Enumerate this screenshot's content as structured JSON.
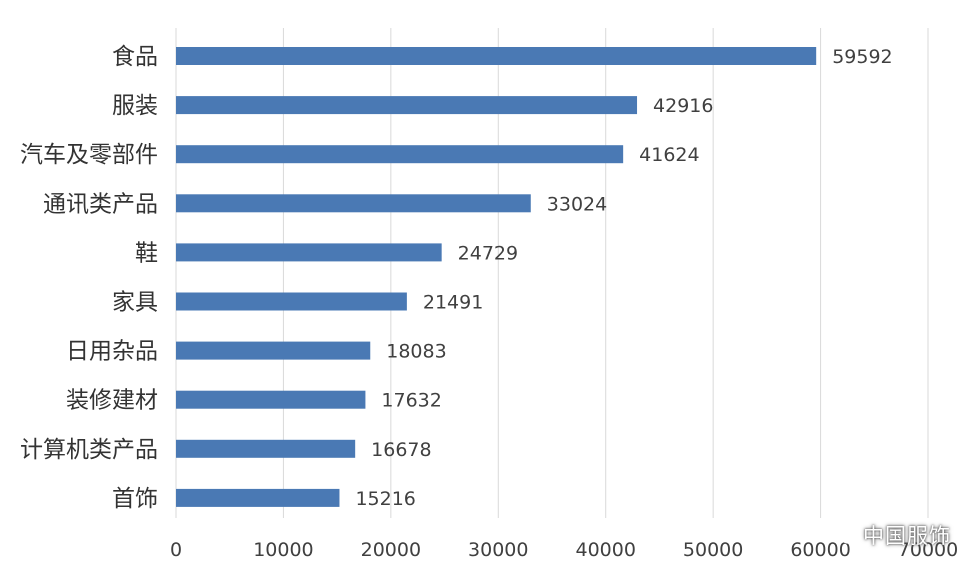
{
  "chart_data": {
    "type": "bar",
    "orientation": "horizontal",
    "categories": [
      "食品",
      "服装",
      "汽车及零部件",
      "通讯类产品",
      "鞋",
      "家具",
      "日用杂品",
      "装修建材",
      "计算机类产品",
      "首饰"
    ],
    "values": [
      59592,
      42916,
      41624,
      33024,
      24729,
      21491,
      18083,
      17632,
      16678,
      15216
    ],
    "data_labels": [
      "59592",
      "42916",
      "41624",
      "33024",
      "24729",
      "21491",
      "18083",
      "17632",
      "16678",
      "15216"
    ],
    "xlim": [
      0,
      70000
    ],
    "x_ticks": [
      0,
      10000,
      20000,
      30000,
      40000,
      50000,
      60000,
      70000
    ],
    "x_tick_labels": [
      "0",
      "10000",
      "20000",
      "30000",
      "40000",
      "50000",
      "60000",
      "70000"
    ],
    "grid": "vertical",
    "title": "",
    "xlabel": "",
    "ylabel": "",
    "bar_color": "#4a79b4",
    "grid_color": "#d9d9d9",
    "text_color": "#404040"
  },
  "watermark": {
    "text": "中国服饰",
    "icon": "wechat-icon"
  }
}
